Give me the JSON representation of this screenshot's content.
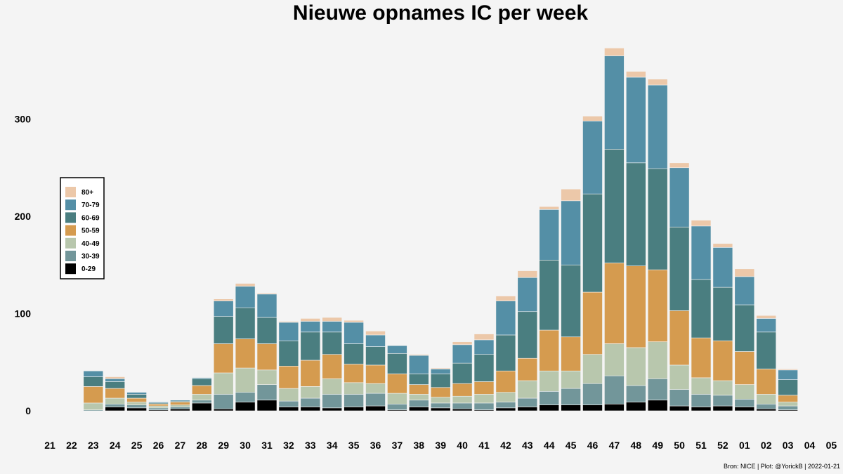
{
  "chart_data": {
    "type": "bar",
    "stacked": true,
    "title": "Nieuwe opnames IC per week",
    "xlabel": "",
    "ylabel": "",
    "ylim": [
      0,
      390
    ],
    "y_ticks": [
      0,
      100,
      200,
      300
    ],
    "grid": false,
    "legend_position": "left",
    "caption": "Bron: NICE | Plot: @YorickB |  2022-01-21",
    "categories": [
      "21",
      "22",
      "23",
      "24",
      "25",
      "26",
      "27",
      "28",
      "29",
      "30",
      "31",
      "32",
      "33",
      "34",
      "35",
      "36",
      "37",
      "38",
      "39",
      "40",
      "41",
      "42",
      "43",
      "44",
      "45",
      "46",
      "47",
      "48",
      "49",
      "50",
      "51",
      "52",
      "01",
      "02",
      "03",
      "04",
      "05"
    ],
    "series": [
      {
        "name": "0-29",
        "color": "#000000",
        "values": [
          0,
          0,
          0,
          4,
          3,
          1,
          2,
          8,
          2,
          9,
          11,
          4,
          4,
          3,
          4,
          5,
          1,
          4,
          3,
          2,
          1,
          3,
          4,
          6,
          6,
          6,
          7,
          9,
          11,
          5,
          4,
          5,
          4,
          2,
          1,
          0,
          0
        ]
      },
      {
        "name": "30-39",
        "color": "#72969a",
        "values": [
          0,
          0,
          1,
          3,
          3,
          2,
          2,
          3,
          15,
          10,
          16,
          6,
          9,
          14,
          13,
          13,
          6,
          7,
          5,
          6,
          7,
          6,
          9,
          14,
          17,
          22,
          29,
          17,
          22,
          17,
          13,
          11,
          8,
          5,
          4,
          0,
          0
        ]
      },
      {
        "name": "40-49",
        "color": "#b8c7ad",
        "values": [
          0,
          0,
          7,
          6,
          3,
          2,
          2,
          6,
          22,
          25,
          15,
          13,
          12,
          16,
          12,
          10,
          11,
          6,
          6,
          7,
          9,
          10,
          18,
          21,
          18,
          30,
          33,
          39,
          38,
          25,
          17,
          15,
          15,
          10,
          4,
          0,
          0
        ]
      },
      {
        "name": "50-59",
        "color": "#d59b4f",
        "values": [
          0,
          0,
          17,
          10,
          4,
          2,
          3,
          9,
          30,
          30,
          27,
          23,
          27,
          25,
          19,
          19,
          20,
          10,
          10,
          13,
          13,
          22,
          23,
          42,
          35,
          64,
          83,
          84,
          74,
          56,
          41,
          41,
          34,
          26,
          7,
          0,
          0
        ]
      },
      {
        "name": "60-69",
        "color": "#4a7e80",
        "values": [
          0,
          0,
          10,
          7,
          4,
          1,
          1,
          7,
          28,
          32,
          27,
          26,
          29,
          23,
          21,
          19,
          21,
          11,
          14,
          21,
          28,
          37,
          48,
          72,
          74,
          101,
          117,
          106,
          104,
          86,
          60,
          55,
          48,
          38,
          16,
          0,
          0
        ]
      },
      {
        "name": "70-79",
        "color": "#548fa6",
        "values": [
          0,
          0,
          6,
          3,
          2,
          1,
          1,
          1,
          16,
          22,
          24,
          19,
          11,
          11,
          22,
          12,
          8,
          19,
          5,
          19,
          15,
          35,
          35,
          52,
          66,
          75,
          96,
          88,
          86,
          61,
          55,
          41,
          29,
          14,
          10,
          0,
          0
        ]
      },
      {
        "name": "80+",
        "color": "#ecc8a9",
        "values": [
          0,
          0,
          0,
          2,
          0,
          0,
          0,
          0,
          2,
          3,
          1,
          1,
          3,
          4,
          2,
          4,
          0,
          1,
          1,
          3,
          6,
          5,
          7,
          3,
          12,
          5,
          8,
          6,
          6,
          5,
          6,
          4,
          8,
          3,
          1,
          0,
          0
        ]
      }
    ]
  }
}
